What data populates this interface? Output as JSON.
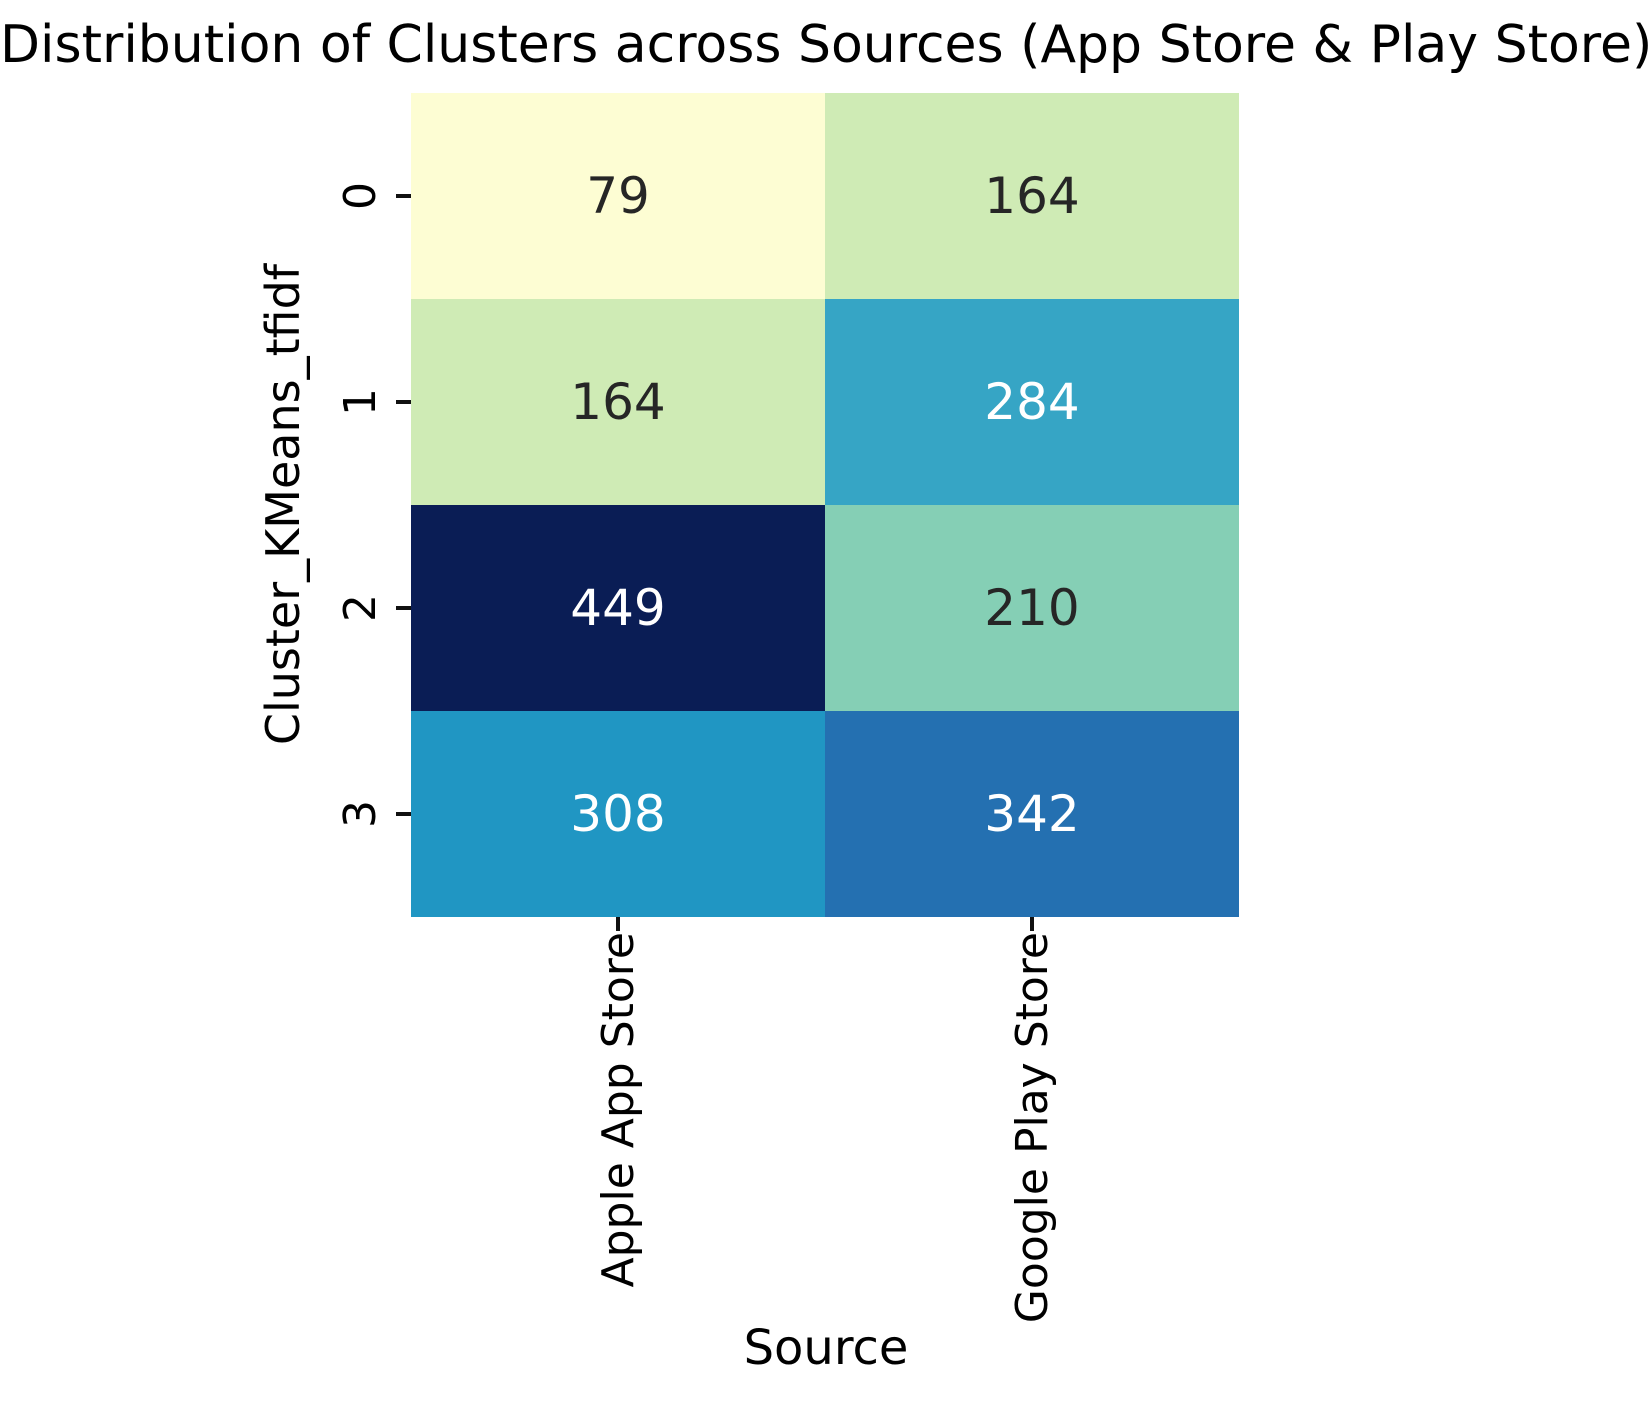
{
  "chart_data": {
    "type": "heatmap",
    "title": "Distribution of Clusters across Sources (App Store & Play Store)",
    "xlabel": "Source",
    "ylabel": "Cluster_KMeans_tfidf",
    "x_categories": [
      "Apple App Store",
      "Google Play Store"
    ],
    "y_categories": [
      "0",
      "1",
      "2",
      "3"
    ],
    "values": [
      [
        79,
        164
      ],
      [
        164,
        284
      ],
      [
        449,
        210
      ],
      [
        308,
        342
      ]
    ],
    "cell_colors": [
      [
        "#fdfdd3",
        "#cfebb5"
      ],
      [
        "#cfebb5",
        "#36a5c5"
      ],
      [
        "#0a1d55",
        "#85cfb5"
      ],
      [
        "#2096c3",
        "#2470b1"
      ]
    ],
    "value_text_colors": [
      [
        "#262626",
        "#262626"
      ],
      [
        "#262626",
        "#ffffff"
      ],
      [
        "#ffffff",
        "#262626"
      ],
      [
        "#ffffff",
        "#ffffff"
      ]
    ],
    "value_range": [
      79,
      449
    ],
    "grid": false,
    "legend": "none",
    "annotations": "cell counts shown in each cell"
  }
}
